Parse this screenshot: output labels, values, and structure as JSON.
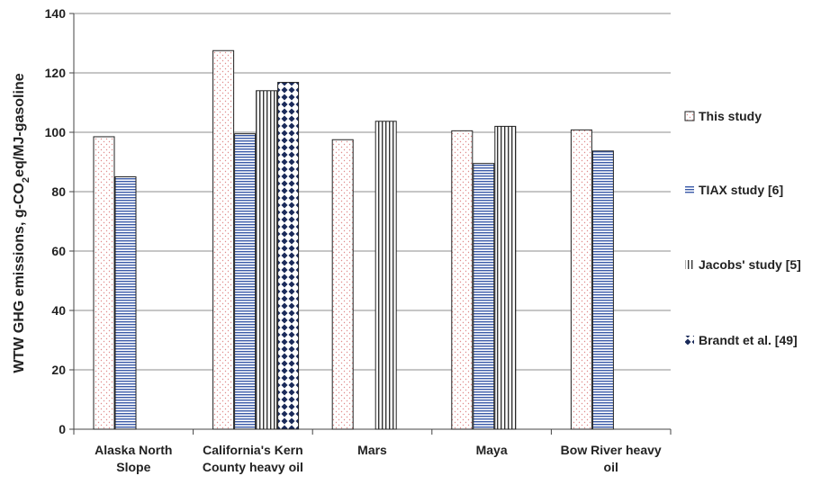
{
  "chart_data": {
    "type": "bar",
    "title": "",
    "xlabel": "",
    "ylabel": "WTW GHG emissions, g-CO₂eq/MJ-gasoline",
    "ylim": [
      0,
      140
    ],
    "yticks": [
      0,
      20,
      40,
      60,
      80,
      100,
      120,
      140
    ],
    "grid": true,
    "legend_position": "right",
    "categories": [
      [
        "Alaska North",
        "Slope"
      ],
      [
        "California's Kern",
        "County heavy oil"
      ],
      [
        "Mars"
      ],
      [
        "Maya"
      ],
      [
        "Bow River heavy",
        "oil"
      ]
    ],
    "series": [
      {
        "name": "This study",
        "pattern": "dots",
        "color": "#e8a0a0",
        "values": [
          98.5,
          127.5,
          97.5,
          100.5,
          100.8
        ]
      },
      {
        "name": "TIAX study [6]",
        "pattern": "hlines",
        "color": "#2f4f9f",
        "values": [
          85,
          99.5,
          null,
          89.5,
          93.7
        ]
      },
      {
        "name": "Jacobs' study [5]",
        "pattern": "vlines",
        "color": "#333333",
        "values": [
          null,
          114,
          103.7,
          102,
          null
        ]
      },
      {
        "name": "Brandt et al. [49]",
        "pattern": "diamonds",
        "color": "#1a2a5a",
        "values": [
          null,
          116.8,
          null,
          null,
          null
        ]
      }
    ]
  }
}
